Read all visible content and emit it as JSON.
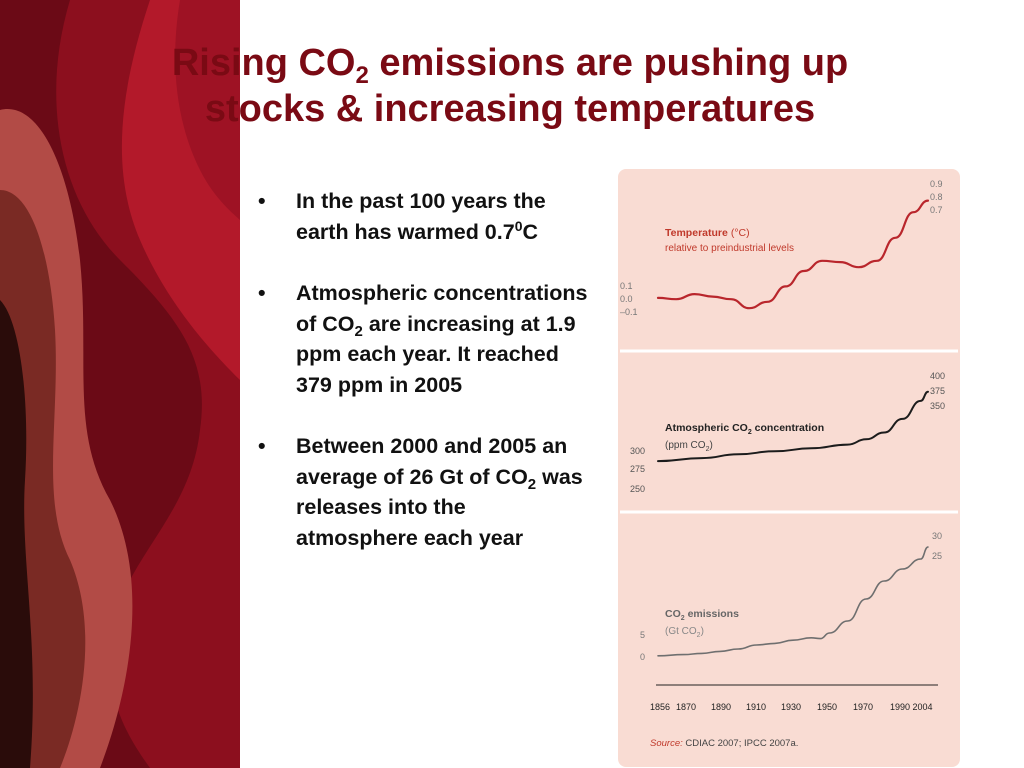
{
  "slide": {
    "title": {
      "part1": "Rising CO",
      "sub": "2",
      "part2": " emissions are pushing up",
      "line2": "stocks & increasing temperatures"
    },
    "bullet_symbol": "•",
    "bullets": [
      {
        "a": "In the past 100 years the earth has warmed 0.7",
        "sup": "0",
        "b": "C"
      },
      {
        "a": "Atmospheric concentrations of CO",
        "sub": "2",
        "b": " are increasing at 1.9 ppm each year. It reached 379 ppm in 2005"
      },
      {
        "a": "Between 2000 and 2005 an average of 26 Gt of CO",
        "sub": "2",
        "b": " was releases into the atmosphere each year"
      }
    ]
  },
  "colors": {
    "title": "#7a0a14",
    "panel": "#f9dcd3",
    "temperature_line": "#b9262c",
    "co2_line": "#1c1c1c",
    "emissions_line": "#6f6f6f",
    "label_red": "#c0392b"
  },
  "chart_data": [
    {
      "type": "line",
      "title": "Temperature",
      "unit": "(°C)",
      "subtitle": "relative to preindustrial levels",
      "yticks_low": [
        "0.1",
        "0.0",
        "–0.1"
      ],
      "yticks_high": [
        "0.9",
        "0.8",
        "0.7"
      ],
      "ylim": [
        -0.15,
        0.95
      ],
      "x": [
        1856,
        1866,
        1876,
        1886,
        1896,
        1906,
        1916,
        1926,
        1936,
        1946,
        1956,
        1966,
        1976,
        1986,
        1996,
        2004
      ],
      "y": [
        0.01,
        0.0,
        0.04,
        0.02,
        0.0,
        -0.07,
        -0.02,
        0.1,
        0.22,
        0.3,
        0.29,
        0.25,
        0.3,
        0.48,
        0.68,
        0.77
      ]
    },
    {
      "type": "line",
      "title_a": "Atmospheric CO",
      "title_sub": "2",
      "title_b": " concentration",
      "unit_a": "(ppm CO",
      "unit_sub": "2",
      "unit_b": ")",
      "yticks_low": [
        "300",
        "275",
        "250"
      ],
      "yticks_high": [
        "400",
        "375",
        "350"
      ],
      "x": [
        1856,
        1880,
        1900,
        1920,
        1940,
        1960,
        1970,
        1980,
        1990,
        2000,
        2004
      ],
      "y": [
        287,
        291,
        296,
        300,
        304,
        309,
        316,
        325,
        343,
        367,
        379
      ]
    },
    {
      "type": "line",
      "title_a": "CO",
      "title_sub": "2",
      "title_b": " emissions",
      "unit_a": "(Gt CO",
      "unit_sub": "2",
      "unit_b": ")",
      "yticks_low": [
        "5",
        "0"
      ],
      "yticks_high": [
        "30",
        "25"
      ],
      "ylim": [
        0,
        30
      ],
      "x": [
        1856,
        1870,
        1880,
        1890,
        1900,
        1910,
        1920,
        1930,
        1940,
        1945,
        1950,
        1960,
        1970,
        1980,
        1990,
        2000,
        2004
      ],
      "y": [
        0.3,
        0.6,
        0.9,
        1.4,
        2.0,
        3.0,
        3.4,
        4.2,
        4.8,
        4.6,
        6.0,
        9.0,
        14.5,
        19.0,
        22.0,
        24.5,
        27.5
      ]
    }
  ],
  "figure": {
    "x_ticks": [
      "1856",
      "1870",
      "1890",
      "1910",
      "1930",
      "1950",
      "1970",
      "1990 2004"
    ],
    "source_label": "Source:",
    "source_text": " CDIAC 2007; IPCC 2007a."
  }
}
